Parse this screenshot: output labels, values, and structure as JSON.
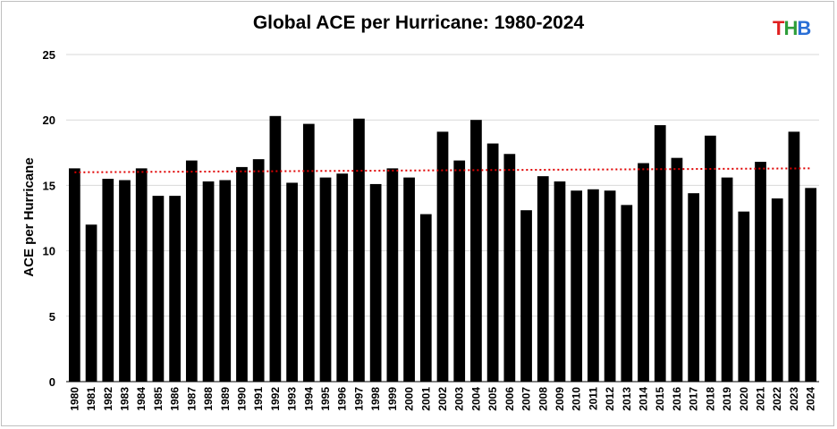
{
  "chart_data": {
    "type": "bar",
    "title": "Global ACE per Hurricane: 1980-2024",
    "xlabel": "",
    "ylabel": "ACE per Hurricane",
    "ylim": [
      0,
      25
    ],
    "yticks": [
      0,
      5,
      10,
      15,
      20,
      25
    ],
    "grid": true,
    "bar_color": "#000000",
    "trendline": {
      "style": "dotted",
      "color": "#e00000",
      "start": 16.0,
      "end": 16.3
    },
    "categories": [
      "1980",
      "1981",
      "1982",
      "1983",
      "1984",
      "1985",
      "1986",
      "1987",
      "1988",
      "1989",
      "1990",
      "1991",
      "1992",
      "1993",
      "1994",
      "1995",
      "1996",
      "1997",
      "1998",
      "1999",
      "2000",
      "2001",
      "2002",
      "2003",
      "2004",
      "2005",
      "2006",
      "2007",
      "2008",
      "2009",
      "2010",
      "2011",
      "2012",
      "2013",
      "2014",
      "2015",
      "2016",
      "2017",
      "2018",
      "2019",
      "2020",
      "2021",
      "2022",
      "2023",
      "2024"
    ],
    "values": [
      16.3,
      12.0,
      15.5,
      15.4,
      16.3,
      14.2,
      14.2,
      16.9,
      15.3,
      15.4,
      16.4,
      17.0,
      20.3,
      15.2,
      19.7,
      15.6,
      15.9,
      20.1,
      15.1,
      16.3,
      15.6,
      12.8,
      19.1,
      16.9,
      20.0,
      18.2,
      17.4,
      13.1,
      15.7,
      15.3,
      14.6,
      14.7,
      14.6,
      13.5,
      16.7,
      19.6,
      17.1,
      14.4,
      18.8,
      15.6,
      13.0,
      16.8,
      14.0,
      19.1,
      14.8
    ]
  },
  "logo": {
    "letters": [
      {
        "char": "T",
        "color": "#e02020"
      },
      {
        "char": "H",
        "color": "#2e9e3a"
      },
      {
        "char": "B",
        "color": "#2a6fd6"
      }
    ]
  }
}
